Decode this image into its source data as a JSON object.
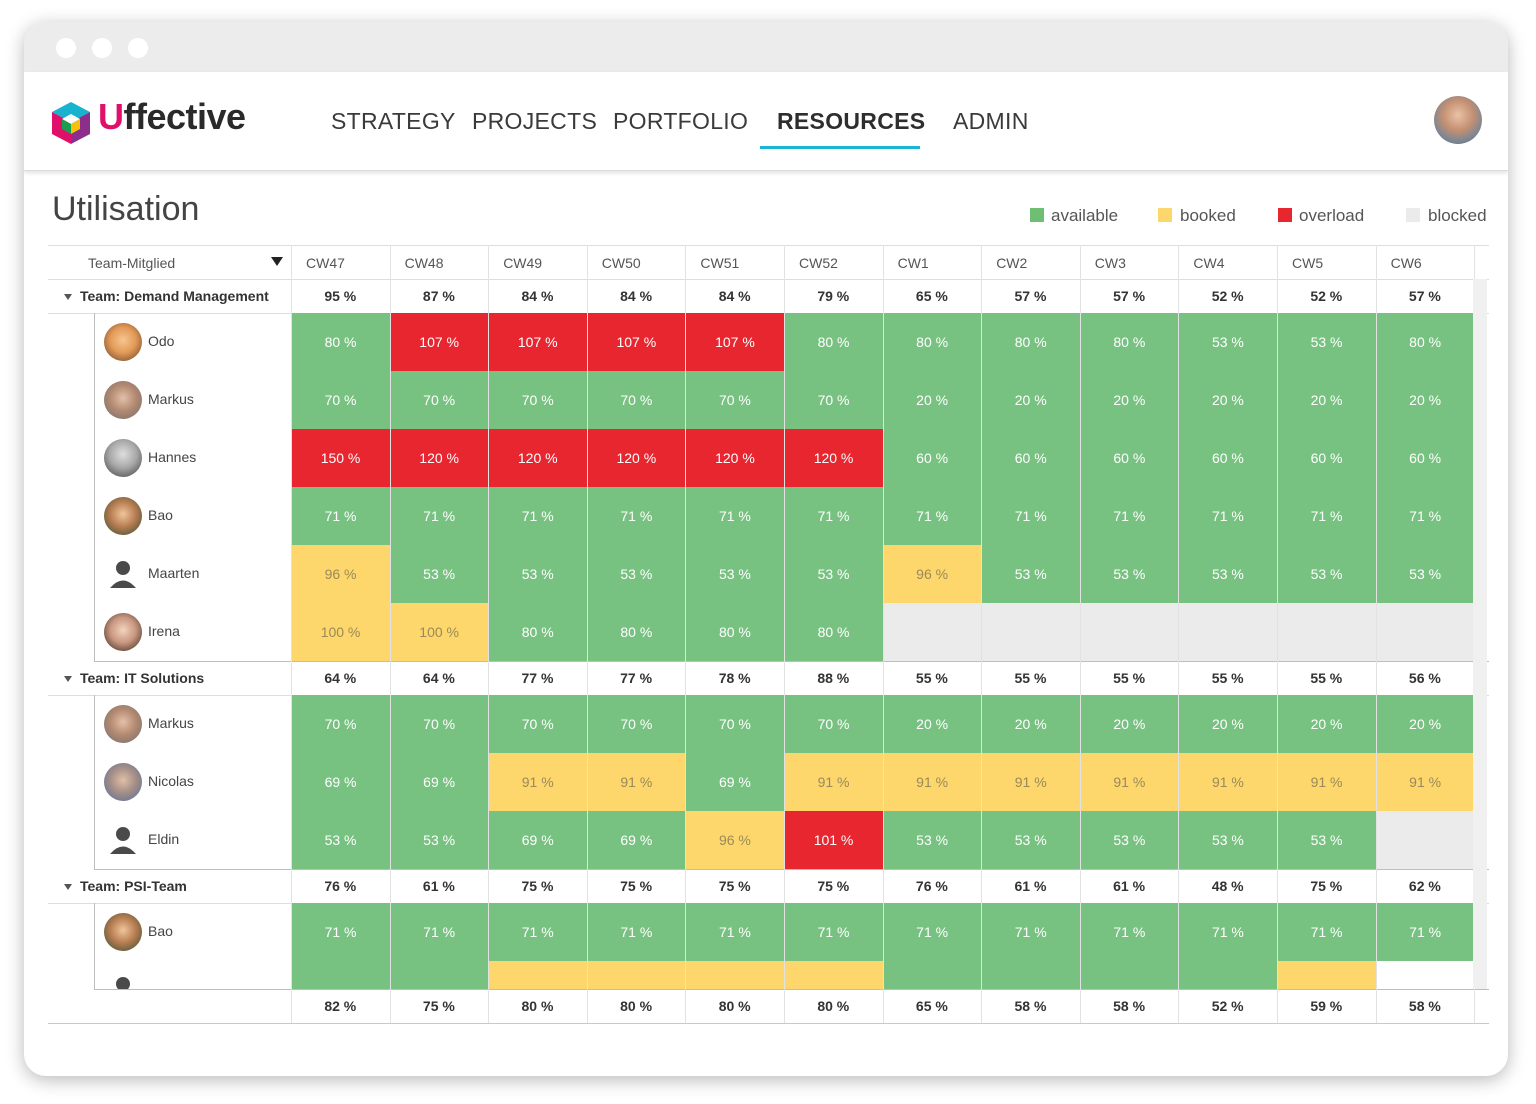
{
  "app": {
    "logo_u": "U",
    "logo_rest": "ffective"
  },
  "nav": [
    {
      "label": "STRATEGY",
      "active": false
    },
    {
      "label": "PROJECTS",
      "active": false
    },
    {
      "label": "PORTFOLIO",
      "active": false
    },
    {
      "label": "RESOURCES",
      "active": true
    },
    {
      "label": "ADMIN",
      "active": false
    }
  ],
  "page": {
    "title": "Utilisation"
  },
  "legend": [
    {
      "label": "available",
      "color": "#6fbf73"
    },
    {
      "label": "booked",
      "color": "#fdd66c"
    },
    {
      "label": "overload",
      "color": "#e8262f"
    },
    {
      "label": "blocked",
      "color": "#ebebeb"
    }
  ],
  "colors": {
    "a": "#78c281",
    "b": "#fdd66c",
    "o": "#e8262f",
    "x": "#ebebeb",
    "n": "#ffffff"
  },
  "table": {
    "member_col_label": "Team-Mitglied",
    "weeks": [
      "CW47",
      "CW48",
      "CW49",
      "CW50",
      "CW51",
      "CW52",
      "CW1",
      "CW2",
      "CW3",
      "CW4",
      "CW5",
      "CW6"
    ],
    "teams": [
      {
        "name": "Team: Demand Management",
        "totals": [
          "95 %",
          "87 %",
          "84 %",
          "84 %",
          "84 %",
          "79 %",
          "65 %",
          "57 %",
          "57 %",
          "52 %",
          "52 %",
          "57 %"
        ],
        "members": [
          {
            "name": "Odo",
            "avatar": "avatar-odo",
            "values": [
              "80 %",
              "107 %",
              "107 %",
              "107 %",
              "107 %",
              "80 %",
              "80 %",
              "80 %",
              "80 %",
              "53 %",
              "53 %",
              "80 %"
            ],
            "status": [
              "a",
              "o",
              "o",
              "o",
              "o",
              "a",
              "a",
              "a",
              "a",
              "a",
              "a",
              "a"
            ]
          },
          {
            "name": "Markus",
            "avatar": "avatar-markus",
            "values": [
              "70 %",
              "70 %",
              "70 %",
              "70 %",
              "70 %",
              "70 %",
              "20 %",
              "20 %",
              "20 %",
              "20 %",
              "20 %",
              "20 %"
            ],
            "status": [
              "a",
              "a",
              "a",
              "a",
              "a",
              "a",
              "a",
              "a",
              "a",
              "a",
              "a",
              "a"
            ]
          },
          {
            "name": "Hannes",
            "avatar": "avatar-hannes",
            "values": [
              "150 %",
              "120 %",
              "120 %",
              "120 %",
              "120 %",
              "120 %",
              "60 %",
              "60 %",
              "60 %",
              "60 %",
              "60 %",
              "60 %"
            ],
            "status": [
              "o",
              "o",
              "o",
              "o",
              "o",
              "o",
              "a",
              "a",
              "a",
              "a",
              "a",
              "a"
            ]
          },
          {
            "name": "Bao",
            "avatar": "avatar-bao",
            "values": [
              "71 %",
              "71 %",
              "71 %",
              "71 %",
              "71 %",
              "71 %",
              "71 %",
              "71 %",
              "71 %",
              "71 %",
              "71 %",
              "71 %"
            ],
            "status": [
              "a",
              "a",
              "a",
              "a",
              "a",
              "a",
              "a",
              "a",
              "a",
              "a",
              "a",
              "a"
            ]
          },
          {
            "name": "Maarten",
            "avatar": "avatar-placeholder",
            "values": [
              "96 %",
              "53 %",
              "53 %",
              "53 %",
              "53 %",
              "53 %",
              "96 %",
              "53 %",
              "53 %",
              "53 %",
              "53 %",
              "53 %"
            ],
            "status": [
              "b",
              "a",
              "a",
              "a",
              "a",
              "a",
              "b",
              "a",
              "a",
              "a",
              "a",
              "a"
            ]
          },
          {
            "name": "Irena",
            "avatar": "avatar-irena",
            "values": [
              "100 %",
              "100 %",
              "80 %",
              "80 %",
              "80 %",
              "80 %",
              "",
              "",
              "",
              "",
              "",
              ""
            ],
            "status": [
              "b",
              "b",
              "a",
              "a",
              "a",
              "a",
              "x",
              "x",
              "x",
              "x",
              "x",
              "x"
            ]
          }
        ]
      },
      {
        "name": "Team: IT Solutions",
        "totals": [
          "64 %",
          "64 %",
          "77 %",
          "77 %",
          "78 %",
          "88 %",
          "55 %",
          "55 %",
          "55 %",
          "55 %",
          "55 %",
          "56 %"
        ],
        "members": [
          {
            "name": "Markus",
            "avatar": "avatar-markus",
            "values": [
              "70 %",
              "70 %",
              "70 %",
              "70 %",
              "70 %",
              "70 %",
              "20 %",
              "20 %",
              "20 %",
              "20 %",
              "20 %",
              "20 %"
            ],
            "status": [
              "a",
              "a",
              "a",
              "a",
              "a",
              "a",
              "a",
              "a",
              "a",
              "a",
              "a",
              "a"
            ]
          },
          {
            "name": "Nicolas",
            "avatar": "avatar-nicolas",
            "values": [
              "69 %",
              "69 %",
              "91 %",
              "91 %",
              "69 %",
              "91 %",
              "91 %",
              "91 %",
              "91 %",
              "91 %",
              "91 %",
              "91 %"
            ],
            "status": [
              "a",
              "a",
              "b",
              "b",
              "a",
              "b",
              "b",
              "b",
              "b",
              "b",
              "b",
              "b"
            ]
          },
          {
            "name": "Eldin",
            "avatar": "avatar-placeholder",
            "values": [
              "53 %",
              "53 %",
              "69 %",
              "69 %",
              "96 %",
              "101 %",
              "53 %",
              "53 %",
              "53 %",
              "53 %",
              "53 %",
              ""
            ],
            "status": [
              "a",
              "a",
              "a",
              "a",
              "b",
              "o",
              "a",
              "a",
              "a",
              "a",
              "a",
              "x"
            ]
          }
        ]
      },
      {
        "name": "Team: PSI-Team",
        "totals": [
          "76 %",
          "61 %",
          "75 %",
          "75 %",
          "75 %",
          "75 %",
          "76 %",
          "61 %",
          "61 %",
          "48 %",
          "75 %",
          "62 %"
        ],
        "members": [
          {
            "name": "Bao",
            "avatar": "avatar-bao",
            "values": [
              "71 %",
              "71 %",
              "71 %",
              "71 %",
              "71 %",
              "71 %",
              "71 %",
              "71 %",
              "71 %",
              "71 %",
              "71 %",
              "71 %"
            ],
            "status": [
              "a",
              "a",
              "a",
              "a",
              "a",
              "a",
              "a",
              "a",
              "a",
              "a",
              "a",
              "a"
            ]
          },
          {
            "name": "",
            "avatar": "avatar-placeholder",
            "values": [
              "",
              "",
              "",
              "",
              "",
              "",
              "",
              "",
              "",
              "",
              "",
              ""
            ],
            "status": [
              "a",
              "a",
              "b",
              "b",
              "b",
              "b",
              "a",
              "a",
              "a",
              "a",
              "b",
              "n"
            ]
          }
        ]
      }
    ],
    "grand_totals": [
      "82 %",
      "75 %",
      "80 %",
      "80 %",
      "80 %",
      "80 %",
      "65 %",
      "58 %",
      "58 %",
      "52 %",
      "59 %",
      "58 %"
    ]
  }
}
